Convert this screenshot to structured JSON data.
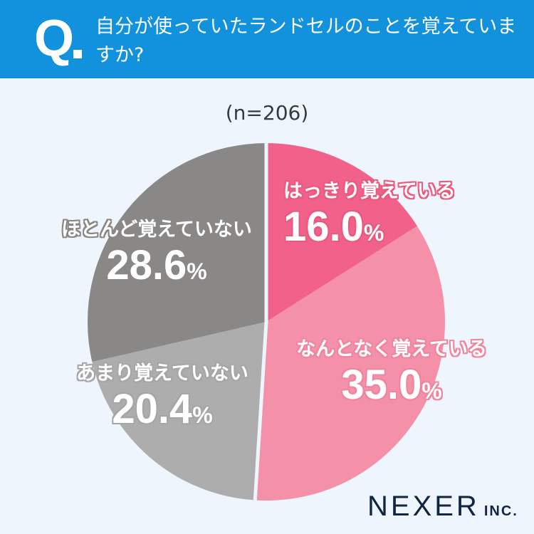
{
  "header": {
    "q_mark": "Q",
    "question": "自分が使っていたランドセルのことを覚えていますか?"
  },
  "sample_size": "(n=206)",
  "brand": {
    "name": "NEXER",
    "suffix": "INC."
  },
  "colors": {
    "header_bg": "#1291dc",
    "background": "#eef5fc",
    "slice_1": "#f26189",
    "slice_2": "#f590a9",
    "slice_3": "#adadad",
    "slice_4": "#898887"
  },
  "chart_data": {
    "type": "pie",
    "title": "自分が使っていたランドセルのことを覚えていますか?",
    "subtitle": "(n=206)",
    "start_angle_deg": 0,
    "direction": "clockwise",
    "legend": "labels on slices",
    "categories": [
      "はっきり覚えている",
      "なんとなく覚えている",
      "あまり覚えていない",
      "ほとんど覚えていない"
    ],
    "values": [
      16.0,
      35.0,
      20.4,
      28.6
    ],
    "value_labels": [
      "16.0",
      "35.0",
      "20.4",
      "28.6"
    ],
    "unit": "%",
    "colors": [
      "#f26189",
      "#f590a9",
      "#adadad",
      "#898887"
    ]
  },
  "labels": [
    {
      "category": "はっきり覚えている",
      "value": "16.0",
      "unit": "%"
    },
    {
      "category": "なんとなく覚えている",
      "value": "35.0",
      "unit": "%"
    },
    {
      "category": "あまり覚えていない",
      "value": "20.4",
      "unit": "%"
    },
    {
      "category": "ほとんど覚えていない",
      "value": "28.6",
      "unit": "%"
    }
  ]
}
